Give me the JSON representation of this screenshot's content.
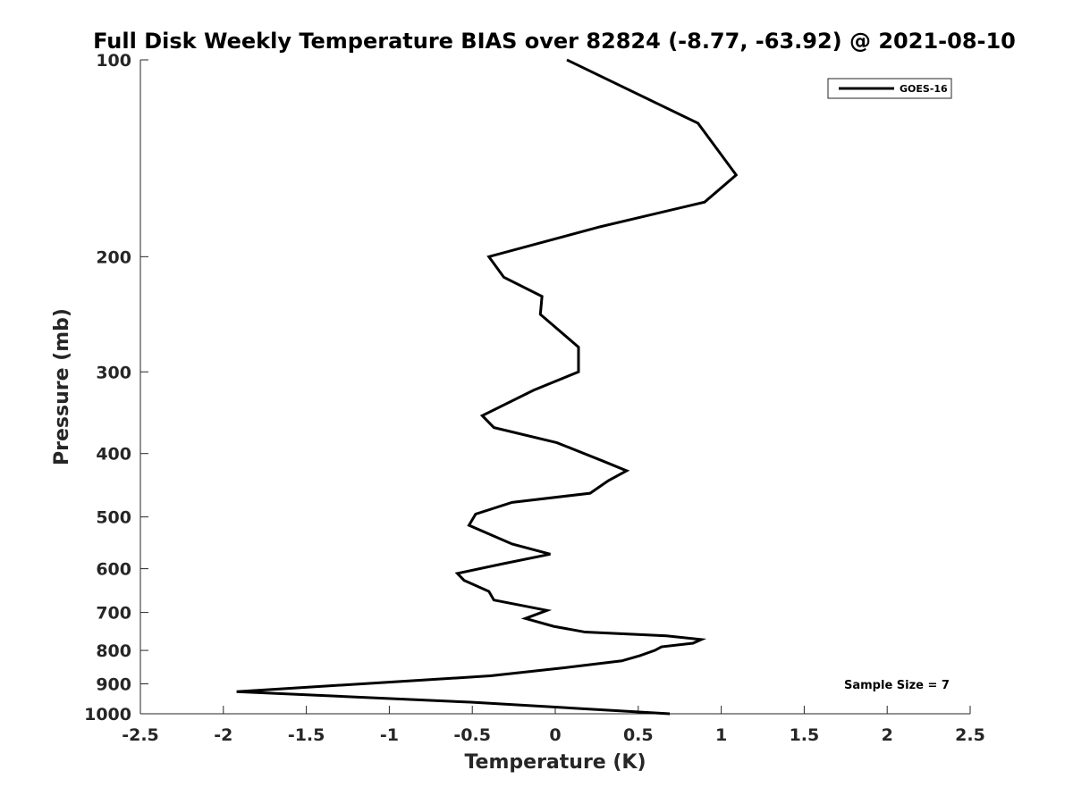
{
  "chart_data": {
    "type": "line",
    "title": "Full Disk Weekly Temperature BIAS over 82824 (-8.77, -63.92) @ 2021-08-10",
    "xlabel": "Temperature (K)",
    "ylabel": "Pressure (mb)",
    "xlim": [
      -2.5,
      2.5
    ],
    "ylim": [
      100,
      1000
    ],
    "y_scale": "log",
    "y_reversed": true,
    "x_ticks": [
      -2.5,
      -2,
      -1.5,
      -1,
      -0.5,
      0,
      0.5,
      1,
      1.5,
      2,
      2.5
    ],
    "x_tick_labels": [
      "-2.5",
      "-2",
      "-1.5",
      "-1",
      "-0.5",
      "0",
      "0.5",
      "1",
      "1.5",
      "2",
      "2.5"
    ],
    "y_ticks": [
      100,
      200,
      300,
      400,
      500,
      600,
      700,
      800,
      900,
      1000
    ],
    "y_tick_labels": [
      "100",
      "200",
      "300",
      "400",
      "500",
      "600",
      "700",
      "800",
      "900",
      "1000"
    ],
    "grid": false,
    "legend_position": "top-right",
    "series": [
      {
        "name": "GOES-16",
        "color": "#000000",
        "points": [
          {
            "x": 0.07,
            "p": 100
          },
          {
            "x": 0.86,
            "p": 125
          },
          {
            "x": 1.09,
            "p": 150
          },
          {
            "x": 0.9,
            "p": 165
          },
          {
            "x": 0.27,
            "p": 180
          },
          {
            "x": -0.4,
            "p": 200
          },
          {
            "x": -0.31,
            "p": 215
          },
          {
            "x": -0.08,
            "p": 230
          },
          {
            "x": -0.09,
            "p": 245
          },
          {
            "x": 0.14,
            "p": 275
          },
          {
            "x": 0.14,
            "p": 300
          },
          {
            "x": -0.13,
            "p": 320
          },
          {
            "x": -0.44,
            "p": 350
          },
          {
            "x": -0.37,
            "p": 365
          },
          {
            "x": 0.01,
            "p": 385
          },
          {
            "x": 0.28,
            "p": 410
          },
          {
            "x": 0.43,
            "p": 425
          },
          {
            "x": 0.32,
            "p": 440
          },
          {
            "x": 0.21,
            "p": 460
          },
          {
            "x": -0.26,
            "p": 475
          },
          {
            "x": -0.48,
            "p": 495
          },
          {
            "x": -0.52,
            "p": 515
          },
          {
            "x": -0.26,
            "p": 550
          },
          {
            "x": -0.03,
            "p": 570
          },
          {
            "x": -0.32,
            "p": 590
          },
          {
            "x": -0.59,
            "p": 610
          },
          {
            "x": -0.55,
            "p": 625
          },
          {
            "x": -0.4,
            "p": 650
          },
          {
            "x": -0.37,
            "p": 670
          },
          {
            "x": -0.05,
            "p": 695
          },
          {
            "x": -0.18,
            "p": 715
          },
          {
            "x": -0.01,
            "p": 735
          },
          {
            "x": 0.18,
            "p": 750
          },
          {
            "x": 0.67,
            "p": 760
          },
          {
            "x": 0.88,
            "p": 770
          },
          {
            "x": 0.83,
            "p": 780
          },
          {
            "x": 0.64,
            "p": 790
          },
          {
            "x": 0.6,
            "p": 800
          },
          {
            "x": 0.51,
            "p": 815
          },
          {
            "x": 0.4,
            "p": 830
          },
          {
            "x": 0.06,
            "p": 850
          },
          {
            "x": -0.39,
            "p": 875
          },
          {
            "x": -1.92,
            "p": 925
          },
          {
            "x": -0.51,
            "p": 960
          },
          {
            "x": 0.69,
            "p": 1000
          }
        ]
      }
    ],
    "annotations": [
      "Sample Size = 7"
    ]
  }
}
